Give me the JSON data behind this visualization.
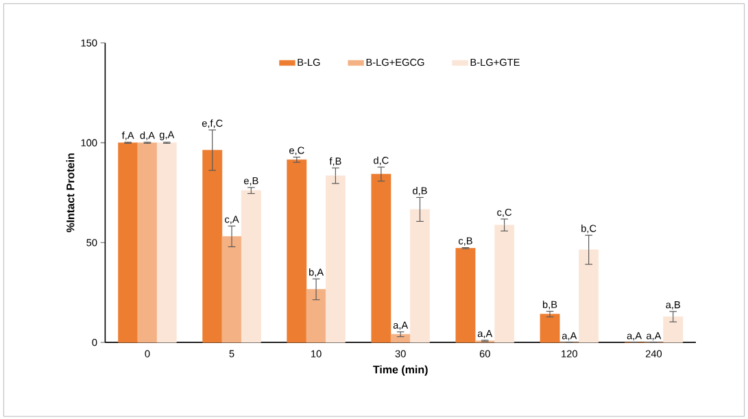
{
  "chart_data": {
    "type": "bar",
    "xlabel": "Time (min)",
    "ylabel": "%Intact Protein",
    "categories": [
      "0",
      "5",
      "10",
      "30",
      "60",
      "120",
      "240"
    ],
    "series": [
      {
        "name": "B-LG",
        "color": "#ed7d31",
        "values": [
          100,
          96.3,
          91.5,
          84.3,
          47.2,
          14.2,
          0
        ],
        "errors": [
          0.3,
          10.1,
          1.3,
          3.5,
          0.3,
          1.4,
          null
        ],
        "value_labels": [
          "f,A",
          "e,f,C",
          "e,C",
          "d,C",
          "c,B",
          "b,B",
          "a,A"
        ]
      },
      {
        "name": "B-LG+EGCG",
        "color": "#f4b183",
        "values": [
          100,
          53.1,
          26.6,
          4.1,
          0.8,
          0,
          0
        ],
        "errors": [
          0.3,
          5.2,
          5.2,
          1.2,
          0.3,
          null,
          null
        ],
        "value_labels": [
          "d,A",
          "c,A",
          "b,A",
          "a,A",
          "a,A",
          "a,A",
          "a,A"
        ]
      },
      {
        "name": "B-LG+GTE",
        "color": "#fbe5d6",
        "values": [
          100,
          76.1,
          83.5,
          66.6,
          58.8,
          46.4,
          12.9
        ],
        "errors": [
          0.3,
          1.5,
          3.9,
          6.0,
          3.0,
          7.3,
          2.6
        ],
        "value_labels": [
          "g,A",
          "e,B",
          "f,B",
          "d,B",
          "c,C",
          "b,C",
          "a,B"
        ]
      }
    ],
    "ylim": [
      0,
      150
    ],
    "yticks": [
      0,
      50,
      100,
      150
    ],
    "legend": "top",
    "grid": false
  }
}
